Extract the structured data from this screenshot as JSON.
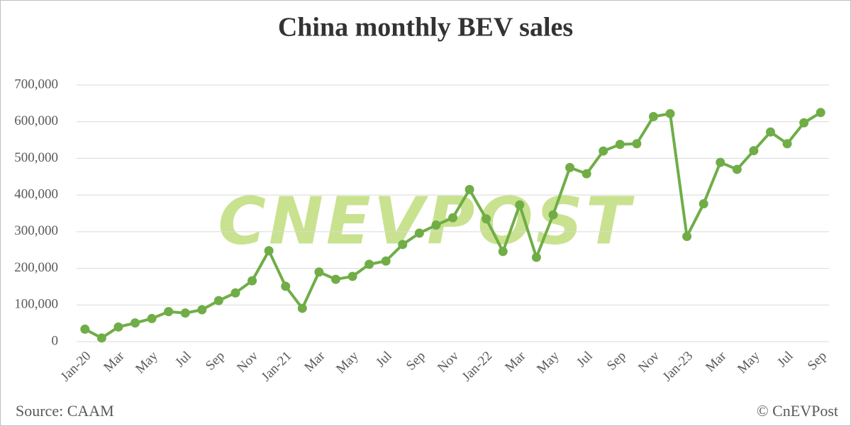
{
  "chart_data": {
    "type": "line",
    "title": "China monthly BEV sales",
    "categories": [
      "Jan-20",
      null,
      "Mar",
      null,
      "May",
      null,
      "Jul",
      null,
      "Sep",
      null,
      "Nov",
      null,
      "Jan-21",
      null,
      "Mar",
      null,
      "May",
      null,
      "Jul",
      null,
      "Sep",
      null,
      "Nov",
      null,
      "Jan-22",
      null,
      "Mar",
      null,
      "May",
      null,
      "Jul",
      null,
      "Sep",
      null,
      "Nov",
      null,
      "Jan-23",
      null,
      "Mar",
      null,
      "May",
      null,
      "Jul",
      null,
      "Sep"
    ],
    "values": [
      34000,
      10000,
      40000,
      51000,
      63000,
      82000,
      78000,
      87000,
      112000,
      133000,
      166000,
      248000,
      151000,
      91000,
      190000,
      170000,
      178000,
      211000,
      220000,
      265000,
      296000,
      318000,
      338000,
      415000,
      335000,
      246000,
      373000,
      230000,
      346000,
      475000,
      458000,
      520000,
      538000,
      540000,
      614000,
      622000,
      287000,
      376000,
      489000,
      470000,
      521000,
      572000,
      540000,
      597000,
      625000
    ],
    "color": "#70ad47",
    "ylim": [
      0,
      700000
    ],
    "yticks": [
      0,
      {
        "value": 100000,
        "label": "100,000"
      },
      {
        "value": 200000,
        "label": "200,000"
      },
      {
        "value": 300000,
        "label": "300,000"
      },
      {
        "value": 400000,
        "label": "400,000"
      },
      {
        "value": 500000,
        "label": "500,000"
      },
      {
        "value": 600000,
        "label": "600,000"
      },
      {
        "value": 700000,
        "label": "700,000"
      }
    ],
    "grid": true,
    "watermark": "CNEVPOST",
    "source": "Source: CAAM",
    "copyright": "© CnEVPost"
  }
}
